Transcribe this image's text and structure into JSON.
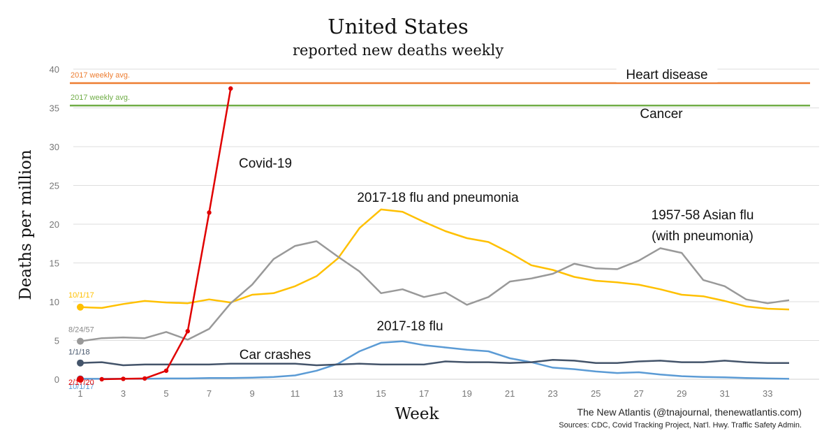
{
  "chart_data": {
    "type": "line",
    "title": "United States",
    "subtitle": "reported new deaths weekly",
    "xlabel": "Week",
    "ylabel": "Deaths per million",
    "xlim": [
      1,
      34
    ],
    "ylim": [
      0,
      40
    ],
    "x_ticks": [
      1,
      3,
      5,
      7,
      9,
      11,
      13,
      15,
      17,
      19,
      21,
      23,
      25,
      27,
      29,
      31,
      33
    ],
    "y_ticks": [
      0,
      5,
      10,
      15,
      20,
      25,
      30,
      35,
      40
    ],
    "grid": true,
    "credit": "The New Atlantis (@tnajournal, thenewatlantis.com)",
    "sources": "Sources: CDC, Covid Tracking Project, Nat'l. Hwy. Traffic Safety Admin.",
    "reference_lines": [
      {
        "name": "Heart disease",
        "left_label": "2017 weekly avg.",
        "y": 38.2,
        "color": "#ED7D31"
      },
      {
        "name": "Cancer",
        "left_label": "2017 weekly avg.",
        "y": 35.3,
        "color": "#70AD47"
      }
    ],
    "series": [
      {
        "name": "Covid-19",
        "start_label": "2/17/20",
        "color": "#E00000",
        "markers": true,
        "x": [
          2,
          3,
          4,
          5,
          6,
          7,
          8
        ],
        "values": [
          0.0,
          0.05,
          0.1,
          1.1,
          6.2,
          21.5,
          37.5
        ]
      },
      {
        "name": "2017-18 flu and pneumonia",
        "start_label": "10/1/17",
        "color": "#FFC000",
        "x": [
          1,
          2,
          3,
          4,
          5,
          6,
          7,
          8,
          9,
          10,
          11,
          12,
          13,
          14,
          15,
          16,
          17,
          18,
          19,
          20,
          21,
          22,
          23,
          24,
          25,
          26,
          27,
          28,
          29,
          30,
          31,
          32,
          33,
          34
        ],
        "values": [
          9.3,
          9.2,
          9.7,
          10.1,
          9.9,
          9.8,
          10.3,
          9.9,
          10.9,
          11.1,
          12.0,
          13.3,
          15.6,
          19.5,
          21.9,
          21.6,
          20.3,
          19.1,
          18.2,
          17.7,
          16.3,
          14.7,
          14.1,
          13.2,
          12.7,
          12.5,
          12.2,
          11.6,
          10.9,
          10.7,
          10.1,
          9.4,
          9.1,
          9.0
        ]
      },
      {
        "name": "1957-58 Asian flu (with pneumonia)",
        "start_label": "8/24/57",
        "color": "#999999",
        "x": [
          1,
          2,
          3,
          4,
          5,
          6,
          7,
          8,
          9,
          10,
          11,
          12,
          13,
          14,
          15,
          16,
          17,
          18,
          19,
          20,
          21,
          22,
          23,
          24,
          25,
          26,
          27,
          28,
          29,
          30,
          31,
          32,
          33,
          34
        ],
        "values": [
          4.9,
          5.3,
          5.4,
          5.3,
          6.1,
          5.1,
          6.5,
          9.8,
          12.2,
          15.5,
          17.2,
          17.8,
          15.8,
          13.9,
          11.1,
          11.6,
          10.6,
          11.2,
          9.6,
          10.6,
          12.6,
          13.0,
          13.6,
          14.9,
          14.3,
          14.2,
          15.3,
          16.9,
          16.3,
          12.8,
          12.0,
          10.3,
          9.8,
          10.2
        ]
      },
      {
        "name": "2017-18 flu",
        "start_label": "10/1/17",
        "color": "#5B9BD5",
        "x": [
          1,
          2,
          3,
          4,
          5,
          6,
          7,
          8,
          9,
          10,
          11,
          12,
          13,
          14,
          15,
          16,
          17,
          18,
          19,
          20,
          21,
          22,
          23,
          24,
          25,
          26,
          27,
          28,
          29,
          30,
          31,
          32,
          33,
          34
        ],
        "values": [
          0.05,
          0.05,
          0.05,
          0.05,
          0.1,
          0.1,
          0.15,
          0.15,
          0.2,
          0.3,
          0.5,
          1.1,
          2.0,
          3.6,
          4.7,
          4.9,
          4.4,
          4.1,
          3.8,
          3.6,
          2.7,
          2.2,
          1.5,
          1.3,
          1.0,
          0.8,
          0.9,
          0.6,
          0.4,
          0.3,
          0.25,
          0.15,
          0.1,
          0.05
        ]
      },
      {
        "name": "Car crashes",
        "start_label": "1/1/18",
        "color": "#44546A",
        "x": [
          1,
          2,
          3,
          4,
          5,
          6,
          7,
          8,
          9,
          10,
          11,
          12,
          13,
          14,
          15,
          16,
          17,
          18,
          19,
          20,
          21,
          22,
          23,
          24,
          25,
          26,
          27,
          28,
          29,
          30,
          31,
          32,
          33,
          34
        ],
        "values": [
          2.1,
          2.2,
          1.8,
          1.9,
          1.9,
          1.9,
          1.9,
          2.0,
          2.0,
          2.0,
          2.0,
          1.8,
          1.9,
          2.0,
          1.9,
          1.9,
          1.9,
          2.3,
          2.2,
          2.2,
          2.1,
          2.2,
          2.5,
          2.4,
          2.1,
          2.1,
          2.3,
          2.4,
          2.2,
          2.2,
          2.4,
          2.2,
          2.1,
          2.1
        ]
      }
    ]
  }
}
